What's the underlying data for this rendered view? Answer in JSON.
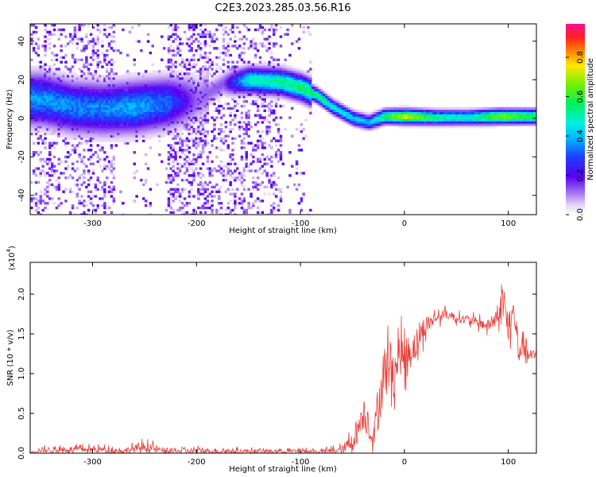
{
  "figure_title": "C2E3.2023.285.03.56.R16",
  "chart_data": [
    {
      "type": "heatmap",
      "title": "C2E3.2023.285.03.56.R16",
      "xlabel": "Height of straight line (km)",
      "ylabel": "Frequency (Hz)",
      "xlim": [
        -360,
        127
      ],
      "ylim": [
        -50,
        49
      ],
      "xticks": [
        -300,
        -200,
        -100,
        0,
        100
      ],
      "yticks": [
        -40,
        -20,
        0,
        20,
        40
      ],
      "xtick_labels": [
        "-300",
        "-200",
        "-100",
        "0",
        "100"
      ],
      "ytick_labels": [
        "-40",
        "-20",
        "0",
        "20",
        "40"
      ],
      "colorbar": {
        "label": "Normalized spectral amplitude",
        "range": [
          0.0,
          0.97
        ],
        "ticks": [
          0.0,
          0.2,
          0.4,
          0.6,
          0.8
        ],
        "tick_labels": [
          "0.0",
          "0.2",
          "0.4",
          "0.6",
          "0.8"
        ],
        "colormap": "rainbow (white-purple-blue-cyan-green-yellow-red-magenta)"
      },
      "ridge": [
        {
          "x": -350,
          "y": 10,
          "amp": 0.38
        },
        {
          "x": -320,
          "y": 6,
          "amp": 0.36
        },
        {
          "x": -290,
          "y": 5,
          "amp": 0.36
        },
        {
          "x": -260,
          "y": 6,
          "amp": 0.4
        },
        {
          "x": -230,
          "y": 8,
          "amp": 0.34
        },
        {
          "x": -200,
          "y": 10,
          "amp": 0.12
        },
        {
          "x": -175,
          "y": 18,
          "amp": 0.14
        },
        {
          "x": -150,
          "y": 20,
          "amp": 0.5
        },
        {
          "x": -120,
          "y": 19,
          "amp": 0.55
        },
        {
          "x": -100,
          "y": 16,
          "amp": 0.58
        },
        {
          "x": -85,
          "y": 12,
          "amp": 0.6
        },
        {
          "x": -70,
          "y": 6,
          "amp": 0.5
        },
        {
          "x": -50,
          "y": 0,
          "amp": 0.45
        },
        {
          "x": -35,
          "y": -2,
          "amp": 0.4
        },
        {
          "x": -20,
          "y": 1,
          "amp": 0.6
        },
        {
          "x": 0,
          "y": 1,
          "amp": 0.78
        },
        {
          "x": 30,
          "y": 0.5,
          "amp": 0.55
        },
        {
          "x": 60,
          "y": 0.5,
          "amp": 0.5
        },
        {
          "x": 90,
          "y": 1,
          "amp": 0.7
        },
        {
          "x": 127,
          "y": 1,
          "amp": 0.6
        }
      ]
    },
    {
      "type": "line",
      "title": "",
      "xlabel": "Height of straight line (km)",
      "ylabel": "SNR (10 * v/v)",
      "y_multiplier_label": "(x10",
      "y_multiplier_exp": "4",
      "y_multiplier_close": ")",
      "xlim": [
        -360,
        127
      ],
      "ylim": [
        0,
        24000
      ],
      "xticks": [
        -300,
        -200,
        -100,
        0,
        100
      ],
      "yticks": [
        0,
        5000,
        10000,
        15000,
        20000
      ],
      "xtick_labels": [
        "-300",
        "-200",
        "-100",
        "0",
        "100"
      ],
      "ytick_labels": [
        "0.0",
        "0.5",
        "1.0",
        "1.5",
        "2.0"
      ],
      "color": "#e8413b",
      "series": [
        {
          "x": [
            -360,
            -350,
            -300,
            -270,
            -250,
            -230,
            -200,
            -150,
            -110,
            -80,
            -60,
            -50,
            -45,
            -40,
            -35,
            -30,
            -25,
            -20,
            -15,
            -10,
            -5,
            0,
            10,
            20,
            30,
            40,
            50,
            60,
            70,
            80,
            90,
            95,
            100,
            105,
            110,
            115,
            120,
            127
          ],
          "y": [
            100,
            400,
            500,
            300,
            800,
            250,
            300,
            250,
            250,
            200,
            400,
            1500,
            2700,
            5000,
            4000,
            1500,
            6000,
            10000,
            11000,
            10000,
            12500,
            12000,
            13500,
            16000,
            17000,
            17500,
            17000,
            16800,
            16500,
            16000,
            17000,
            20000,
            15000,
            18000,
            13000,
            14000,
            12000,
            12500
          ],
          "spike": [
            0,
            700,
            700,
            700,
            1200,
            700,
            700,
            500,
            500,
            500,
            1000,
            2500,
            3000,
            4000,
            4000,
            3000,
            6000,
            7000,
            7000,
            5000,
            5000,
            5000,
            4000,
            2500,
            1500,
            1200,
            1000,
            1200,
            1200,
            1500,
            2500,
            3000,
            3500,
            3000,
            4000,
            3000,
            2000,
            1500
          ]
        }
      ]
    }
  ]
}
